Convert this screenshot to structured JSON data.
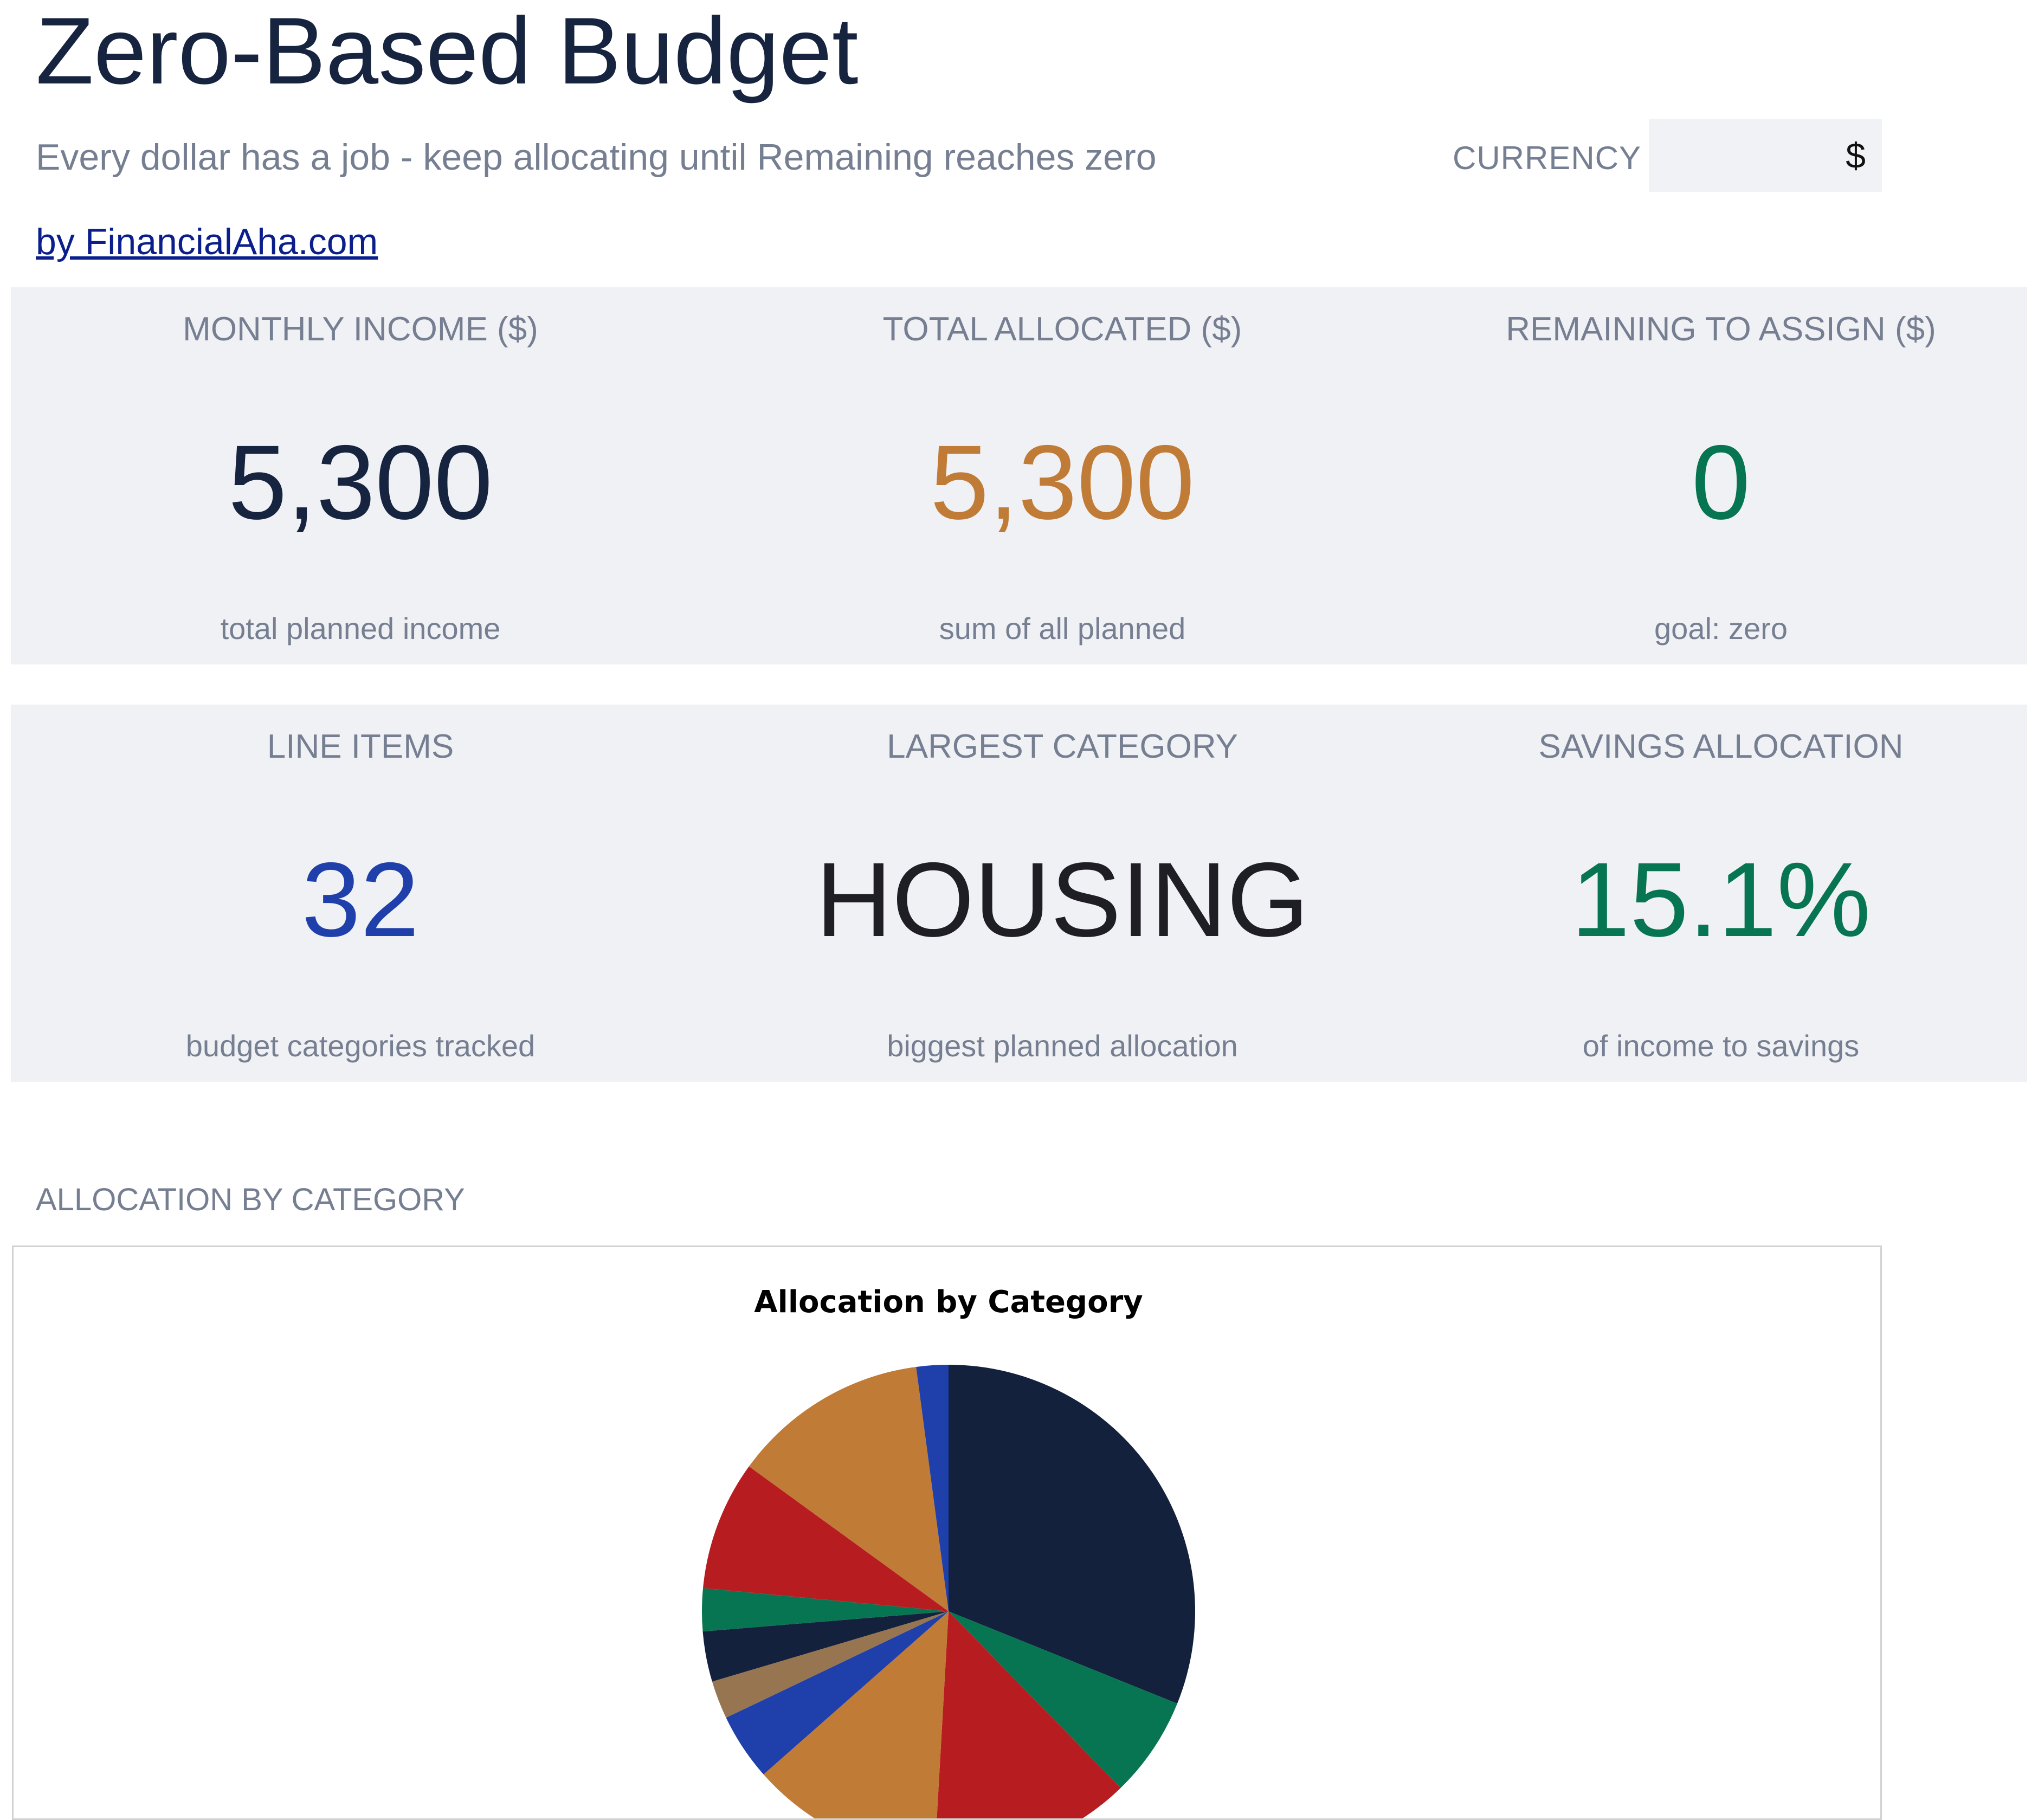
{
  "header": {
    "title": "Zero-Based Budget",
    "subtitle": "Every dollar has a job - keep allocating until Remaining reaches zero",
    "credit": "by FinancialAha.com",
    "currency_label": "CURRENCY",
    "currency_value": "$"
  },
  "kpis_row1": [
    {
      "label": "MONTHLY INCOME ($)",
      "value": "5,300",
      "caption": "total planned income",
      "color": "#172440"
    },
    {
      "label": "TOTAL ALLOCATED ($)",
      "value": "5,300",
      "caption": "sum of all planned",
      "color": "#c07b36"
    },
    {
      "label": "REMAINING TO ASSIGN ($)",
      "value": "0",
      "caption": "goal: zero",
      "color": "#077552"
    }
  ],
  "kpis_row2": [
    {
      "label": "LINE ITEMS",
      "value": "32",
      "caption": "budget categories tracked",
      "color": "#1f3faa"
    },
    {
      "label": "LARGEST CATEGORY",
      "value": "HOUSING",
      "caption": "biggest planned allocation",
      "color": "#1e1e24"
    },
    {
      "label": "SAVINGS ALLOCATION",
      "value": "15.1%",
      "caption": "of income to savings",
      "color": "#077552"
    }
  ],
  "section": {
    "heading": "ALLOCATION BY CATEGORY"
  },
  "chart_data": {
    "type": "pie",
    "title": "Allocation by Category",
    "slices": [
      {
        "value": 31.1,
        "color": "#14213d"
      },
      {
        "value": 6.6,
        "color": "#077552"
      },
      {
        "value": 13.2,
        "color": "#b71d20"
      },
      {
        "value": 12.6,
        "color": "#c07b36"
      },
      {
        "value": 4.4,
        "color": "#1f3faa"
      },
      {
        "value": 2.5,
        "color": "#967550"
      },
      {
        "value": 3.3,
        "color": "#14213d"
      },
      {
        "value": 2.8,
        "color": "#077552"
      },
      {
        "value": 8.5,
        "color": "#b71d20"
      },
      {
        "value": 12.9,
        "color": "#c07b36"
      },
      {
        "value": 2.1,
        "color": "#1f3faa"
      }
    ]
  }
}
